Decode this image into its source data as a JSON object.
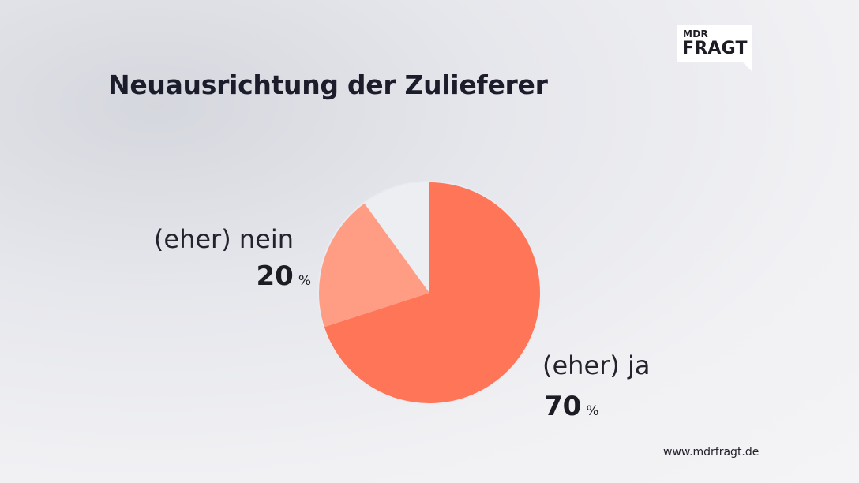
{
  "logo": {
    "line1": "MDR",
    "line2": "FRAGT"
  },
  "footer": {
    "url": "www.mdrfragt.de"
  },
  "chart_data": {
    "type": "pie",
    "title": "Neuausrichtung der Zulieferer",
    "slices": [
      {
        "label": "(eher) ja",
        "value": 70,
        "unit": "%",
        "color": "#ff7558"
      },
      {
        "label": "(eher) nein",
        "value": 20,
        "unit": "%",
        "color": "#ff9d84"
      },
      {
        "label": "",
        "value": 10,
        "unit": "",
        "color": "#eceef2"
      }
    ],
    "legend": "none"
  }
}
